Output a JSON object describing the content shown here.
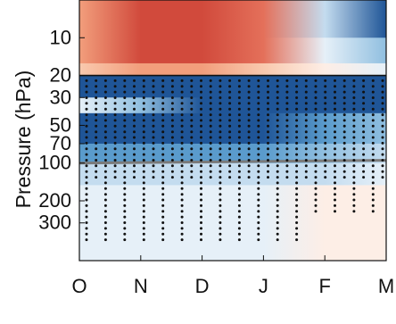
{
  "chart_data": {
    "type": "heatmap",
    "title": "",
    "xlabel": "",
    "ylabel": "Pressure (hPa)",
    "y_scale": "log",
    "y_reversed": true,
    "x_tick_labels": [
      "O",
      "N",
      "D",
      "J",
      "F",
      "M"
    ],
    "y_tick_values": [
      10,
      20,
      30,
      50,
      70,
      100,
      200,
      300
    ],
    "y_tick_labels": [
      "10",
      "20",
      "30",
      "50",
      "70",
      "100",
      "200",
      "300"
    ],
    "ylim": [
      600,
      5
    ],
    "colormap": {
      "positive": [
        "#fdeee6",
        "#f9c9ae",
        "#f29e7c",
        "#e4705a",
        "#d14a3c"
      ],
      "negative": [
        "#e6f0f8",
        "#c4dcef",
        "#90bfe0",
        "#5a9bcc",
        "#3472b3",
        "#1f5597"
      ],
      "neutral": "#ffffff"
    },
    "contour_color": "#111111",
    "stippling": "dots mark statistically significant regions",
    "bands": [
      {
        "p_top": 5,
        "p_bottom": 10,
        "values": [
          1.5,
          2.5,
          2.5,
          2.0,
          -1.0,
          -3.0
        ]
      },
      {
        "p_top": 10,
        "p_bottom": 16,
        "values": [
          1.5,
          2.5,
          2.5,
          2.0,
          -0.5,
          -1.5
        ]
      },
      {
        "p_top": 16,
        "p_bottom": 20,
        "values": [
          1.0,
          1.5,
          1.5,
          1.0,
          0.5,
          -0.5
        ]
      },
      {
        "p_top": 20,
        "p_bottom": 30,
        "values": [
          -3.0,
          -3.0,
          -3.0,
          -3.0,
          -3.0,
          -3.0
        ]
      },
      {
        "p_top": 30,
        "p_bottom": 40,
        "values": [
          -0.5,
          -1.5,
          -3.0,
          -3.0,
          -3.0,
          -3.0
        ]
      },
      {
        "p_top": 40,
        "p_bottom": 70,
        "values": [
          -3.0,
          -3.0,
          -3.0,
          -3.0,
          -2.0,
          -1.5
        ]
      },
      {
        "p_top": 70,
        "p_bottom": 100,
        "values": [
          -2.0,
          -2.0,
          -2.0,
          -2.0,
          -1.5,
          -1.0
        ]
      },
      {
        "p_top": 100,
        "p_bottom": 150,
        "values": [
          -1.0,
          -1.0,
          -1.0,
          -1.0,
          -1.0,
          -0.5
        ]
      },
      {
        "p_top": 150,
        "p_bottom": 600,
        "values": [
          -0.5,
          -0.5,
          -0.5,
          -0.5,
          0.5,
          0.5
        ]
      }
    ],
    "zero_contour_at_hPa": 20,
    "highlight_line_hPa": [
      100,
      95
    ],
    "highlight_line_color": "#7a7a7a"
  }
}
